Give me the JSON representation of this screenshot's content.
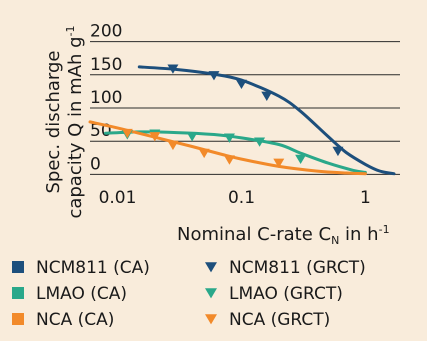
{
  "chart_data": {
    "type": "line",
    "title": "",
    "ylabel": {
      "line1": "Spec. discharge",
      "line2_pre": "capacity Q in mAh g",
      "line2_sup": "-1"
    },
    "xlabel": {
      "pre": "Nominal C-rate C",
      "sub": "N",
      "mid": " in h",
      "sup": "-1"
    },
    "x_scale": "log",
    "xlim": [
      0.006,
      1.9
    ],
    "ylim": [
      -10,
      210
    ],
    "x_ticks": [
      0.01,
      0.1,
      1
    ],
    "x_tick_labels": [
      "0.01",
      "0.1",
      "1"
    ],
    "y_ticks": [
      0,
      50,
      100,
      150,
      200
    ],
    "y_tick_labels": [
      "0",
      "50",
      "100",
      "150",
      "200"
    ],
    "grid": "horizontal",
    "legend_position": "bottom",
    "series": [
      {
        "name": "NCM811 (CA)",
        "kind": "line",
        "color": "#1d4f7c",
        "points": [
          [
            0.015,
            162
          ],
          [
            0.03,
            158
          ],
          [
            0.06,
            151
          ],
          [
            0.1,
            142
          ],
          [
            0.2,
            118
          ],
          [
            0.3,
            95
          ],
          [
            0.5,
            57
          ],
          [
            0.7,
            33
          ],
          [
            1.0,
            15
          ],
          [
            1.3,
            5
          ],
          [
            1.7,
            1
          ]
        ]
      },
      {
        "name": "NCM811 (GRCT)",
        "kind": "marker",
        "color": "#1d4f7c",
        "points": [
          [
            0.028,
            159
          ],
          [
            0.06,
            149
          ],
          [
            0.1,
            136
          ],
          [
            0.16,
            118
          ],
          [
            0.6,
            35
          ]
        ]
      },
      {
        "name": "LMAO (CA)",
        "kind": "line",
        "color": "#2aa88a",
        "points": [
          [
            0.008,
            62
          ],
          [
            0.015,
            64
          ],
          [
            0.03,
            63
          ],
          [
            0.06,
            60
          ],
          [
            0.1,
            55
          ],
          [
            0.2,
            45
          ],
          [
            0.3,
            32
          ],
          [
            0.5,
            17
          ],
          [
            0.8,
            6
          ],
          [
            1.0,
            3
          ]
        ]
      },
      {
        "name": "LMAO (GRCT)",
        "kind": "marker",
        "color": "#2aa88a",
        "points": [
          [
            0.012,
            60
          ],
          [
            0.02,
            61
          ],
          [
            0.04,
            57
          ],
          [
            0.08,
            55
          ],
          [
            0.14,
            49
          ],
          [
            0.3,
            23
          ]
        ]
      },
      {
        "name": "NCA (CA)",
        "kind": "line",
        "color": "#f28a2a",
        "points": [
          [
            0.006,
            79
          ],
          [
            0.01,
            70
          ],
          [
            0.02,
            56
          ],
          [
            0.04,
            42
          ],
          [
            0.07,
            30
          ],
          [
            0.1,
            23
          ],
          [
            0.2,
            12
          ],
          [
            0.4,
            5
          ],
          [
            0.7,
            2
          ],
          [
            1.0,
            1
          ]
        ]
      },
      {
        "name": "NCA (GRCT)",
        "kind": "marker",
        "color": "#f28a2a",
        "points": [
          [
            0.012,
            62
          ],
          [
            0.02,
            57
          ],
          [
            0.028,
            44
          ],
          [
            0.05,
            32
          ],
          [
            0.08,
            22
          ],
          [
            0.2,
            17
          ]
        ]
      }
    ],
    "legend": [
      {
        "label": "NCM811 (CA)",
        "symbol": "square",
        "color": "#1d4f7c"
      },
      {
        "label": "NCM811 (GRCT)",
        "symbol": "triangle",
        "color": "#1d4f7c"
      },
      {
        "label": "LMAO (CA)",
        "symbol": "square",
        "color": "#2aa88a"
      },
      {
        "label": "LMAO (GRCT)",
        "symbol": "triangle",
        "color": "#2aa88a"
      },
      {
        "label": "NCA (CA)",
        "symbol": "square",
        "color": "#f28a2a"
      },
      {
        "label": "NCA (GRCT)",
        "symbol": "triangle",
        "color": "#f28a2a"
      }
    ]
  }
}
